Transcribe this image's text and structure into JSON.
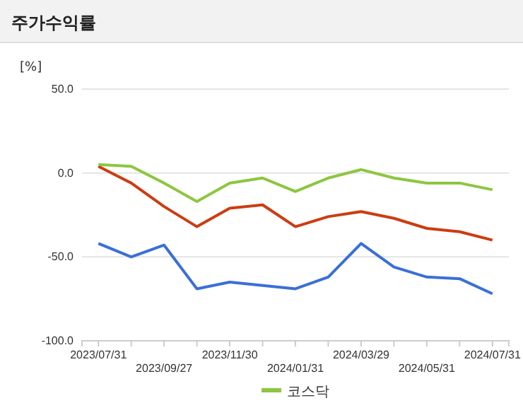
{
  "chart_data": {
    "type": "line",
    "title": "주가수익률",
    "ylabel": "[%]",
    "categories": [
      "2023/07/31",
      null,
      "2023/09/27",
      null,
      "2023/11/30",
      null,
      "2024/01/31",
      null,
      "2024/03/29",
      null,
      "2024/05/31",
      null,
      "2024/07/31"
    ],
    "series": [
      {
        "color": "#3a6fd8",
        "values": [
          -42,
          -50,
          -43,
          -69,
          -65,
          -67,
          -69,
          -62,
          -42,
          -56,
          -62,
          -63,
          -72
        ]
      },
      {
        "color": "#cc3d10",
        "values": [
          4,
          -6,
          -20,
          -32,
          -21,
          -19,
          -32,
          -26,
          -23,
          -27,
          -33,
          -35,
          -40
        ]
      },
      {
        "name": "코스닥",
        "color": "#8dc63f",
        "values": [
          5,
          4,
          -6,
          -17,
          -6,
          -3,
          -11,
          -3,
          2,
          -3,
          -6,
          -6,
          -10
        ]
      }
    ],
    "ylim": [
      -100,
      50
    ],
    "yticks": [
      {
        "value": -100,
        "label": "-100.0"
      },
      {
        "value": -50,
        "label": "-50.0"
      },
      {
        "value": 0,
        "label": "0.0"
      },
      {
        "value": 50,
        "label": "50.0"
      }
    ],
    "grid": "y",
    "legend": "bottom",
    "marker": "none",
    "line_style": "solid"
  }
}
